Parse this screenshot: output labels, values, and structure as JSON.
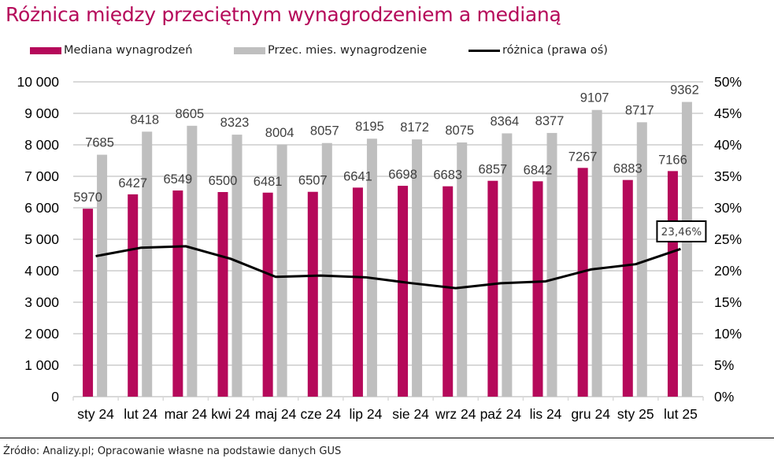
{
  "colors": {
    "title": "#b5095a",
    "median": "#b5095a",
    "average": "#bfbfbf",
    "line": "#000000",
    "grid": "#d9d9d9"
  },
  "chart_data": {
    "type": "bar",
    "title": "Różnica między przeciętnym wynagrodzeniem a medianą",
    "categories": [
      "sty 24",
      "lut 24",
      "mar 24",
      "kwi 24",
      "maj 24",
      "cze 24",
      "lip 24",
      "sie 24",
      "wrz 24",
      "paź 24",
      "lis 24",
      "gru 24",
      "sty 25",
      "lut 25"
    ],
    "series": [
      {
        "name": "Mediana wynagrodzeń",
        "type": "bar",
        "axis": "left",
        "values": [
          5970,
          6427,
          6549,
          6500,
          6481,
          6507,
          6641,
          6698,
          6683,
          6857,
          6842,
          7267,
          6883,
          7166
        ],
        "labels": [
          "5970",
          "6427",
          "6549",
          "6500",
          "6481",
          "6507",
          "6641",
          "6698",
          "6683",
          "6857",
          "6842",
          "7267",
          "6883",
          "7166"
        ]
      },
      {
        "name": "Przec. mies. wynagrodzenie",
        "type": "bar",
        "axis": "left",
        "values": [
          7685,
          8418,
          8605,
          8323,
          8004,
          8057,
          8195,
          8172,
          8075,
          8364,
          8377,
          9107,
          8717,
          9362
        ],
        "labels": [
          "7685",
          "8418",
          "8605",
          "8323",
          "8004",
          "8057",
          "8195",
          "8172",
          "8075",
          "8364",
          "8377",
          "9107",
          "8717",
          "9362"
        ]
      },
      {
        "name": "różnica (prawa oś)",
        "type": "line",
        "axis": "right",
        "values": [
          22.32,
          23.65,
          23.89,
          21.9,
          19.03,
          19.24,
          18.96,
          18.04,
          17.24,
          18.02,
          18.32,
          20.2,
          21.04,
          23.46
        ]
      }
    ],
    "annotation": {
      "category": "lut 25",
      "series": "różnica (prawa oś)",
      "text": "23,46%"
    },
    "y_left": {
      "min": 0,
      "max": 10000,
      "step": 1000,
      "ticks": [
        "0",
        "1 000",
        "2 000",
        "3 000",
        "4 000",
        "5 000",
        "6 000",
        "7 000",
        "8 000",
        "9 000",
        "10 000"
      ]
    },
    "y_right": {
      "min": 0,
      "max": 50,
      "step": 5,
      "ticks": [
        "0%",
        "5%",
        "10%",
        "15%",
        "20%",
        "25%",
        "30%",
        "35%",
        "40%",
        "45%",
        "50%"
      ]
    },
    "xlabel": "",
    "ylabel": "",
    "grid": true,
    "legend_position": "top"
  },
  "source": "Źródło: Analizy.pl; Opracowanie własne na podstawie danych GUS"
}
